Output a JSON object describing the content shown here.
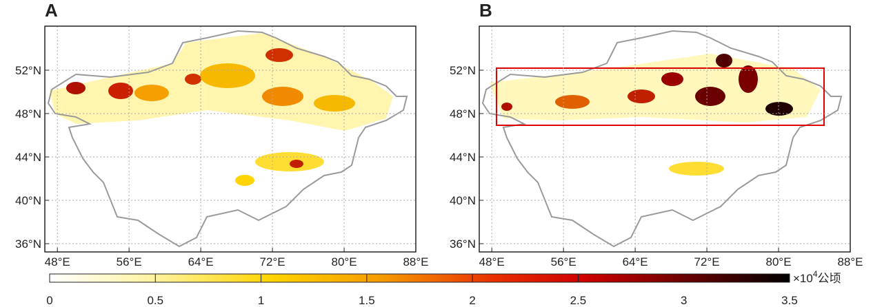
{
  "xlim": [
    46.6,
    88
  ],
  "ylim": [
    35.24,
    56.06
  ],
  "xticks": [
    {
      "value": 48,
      "label": "48°E"
    },
    {
      "value": 56,
      "label": "56°E"
    },
    {
      "value": 64,
      "label": "64°E"
    },
    {
      "value": 72,
      "label": "72°E"
    },
    {
      "value": 80,
      "label": "80°E"
    },
    {
      "value": 88,
      "label": "88°E"
    }
  ],
  "yticks": [
    {
      "value": 36,
      "label": "36°N"
    },
    {
      "value": 40,
      "label": "40°N"
    },
    {
      "value": 44,
      "label": "44°N"
    },
    {
      "value": 48,
      "label": "48°N"
    },
    {
      "value": 52,
      "label": "52°N"
    }
  ],
  "panels": [
    {
      "label": "A"
    },
    {
      "label": "B"
    }
  ],
  "colorbar": {
    "lim": [
      0,
      3.5
    ],
    "ticks": [
      0,
      0.5,
      1,
      1.5,
      2,
      2.5,
      3,
      3.5
    ],
    "unit": {
      "prefix": "×10",
      "exponent": "4",
      "suffix": "公顷"
    }
  }
}
